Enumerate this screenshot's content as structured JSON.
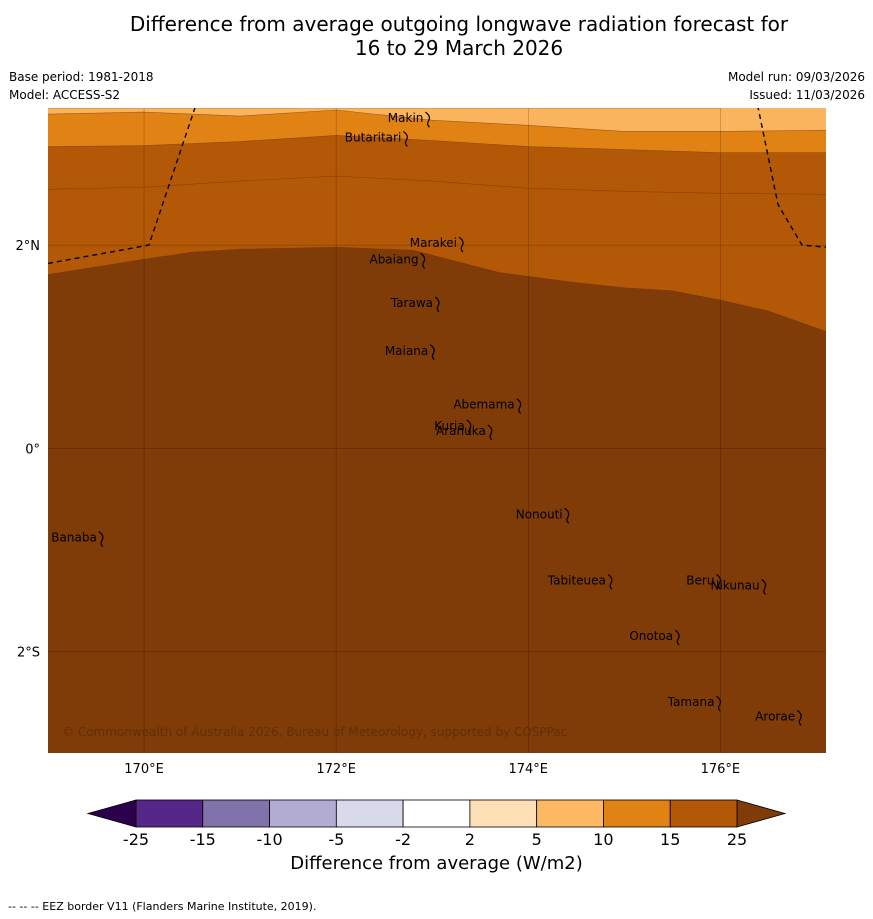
{
  "title": {
    "line1": "Difference from average outgoing longwave radiation forecast for",
    "line2": "16 to 29 March 2026"
  },
  "meta": {
    "base_period": "Base period: 1981-2018",
    "model": "Model: ACCESS-S2",
    "model_run": "Model run: 09/03/2026",
    "issued": "Issued: 11/03/2026"
  },
  "map": {
    "lon_range": [
      169.0,
      177.1
    ],
    "lat_range": [
      -3.0,
      3.35
    ],
    "longitude_ticks": [
      {
        "value": 170,
        "label": "170°E"
      },
      {
        "value": 172,
        "label": "172°E"
      },
      {
        "value": 174,
        "label": "174°E"
      },
      {
        "value": 176,
        "label": "176°E"
      }
    ],
    "latitude_ticks": [
      {
        "value": 2,
        "label": "2°N"
      },
      {
        "value": 0,
        "label": "0°"
      },
      {
        "value": -2,
        "label": "2°S"
      }
    ],
    "contour_colors": {
      "2_5": "#fde0b5",
      "5_10": "#f9b45d",
      "10_15": "#e08214",
      "15_25": "#b35806",
      "gt_25": "#7f3b08"
    },
    "boundaries": {
      "b2_5": {
        "lon": [
          169.0,
          170.0,
          172.0,
          174.0,
          175.5,
          176.0,
          177.1
        ],
        "lat": [
          3.35,
          3.35,
          3.35,
          3.35,
          3.35,
          3.35,
          3.55
        ]
      },
      "b5_10": {
        "lon": [
          169.0,
          170.0,
          171.0,
          172.0,
          173.0,
          174.0,
          175.0,
          176.0,
          177.1
        ],
        "lat": [
          3.29,
          3.31,
          3.27,
          3.33,
          3.23,
          3.18,
          3.12,
          3.12,
          3.13
        ]
      },
      "b10_15": {
        "lon": [
          169.0,
          170.0,
          171.0,
          172.0,
          173.0,
          174.0,
          175.0,
          176.0,
          177.1
        ],
        "lat": [
          2.97,
          2.98,
          3.02,
          3.08,
          3.03,
          2.97,
          2.94,
          2.91,
          2.91
        ]
      },
      "b15_25": {
        "lon": [
          169.0,
          170.0,
          171.0,
          172.0,
          173.0,
          174.0,
          175.0,
          176.0,
          177.1
        ],
        "lat": [
          2.55,
          2.57,
          2.63,
          2.68,
          2.63,
          2.56,
          2.53,
          2.51,
          2.5
        ]
      },
      "b25": {
        "lon": [
          169.0,
          170.0,
          170.5,
          171.0,
          172.0,
          172.8,
          173.7,
          174.5,
          175.0,
          175.5,
          176.0,
          176.5,
          177.1
        ],
        "lat": [
          1.71,
          1.86,
          1.93,
          1.96,
          1.98,
          1.95,
          1.73,
          1.63,
          1.58,
          1.55,
          1.46,
          1.35,
          1.15
        ]
      }
    },
    "eez": [
      {
        "lon": [
          169.0,
          170.05,
          170.6
        ],
        "lat": [
          1.82,
          2.0,
          3.55
        ]
      },
      {
        "lon": [
          176.35,
          176.6,
          176.85,
          177.1
        ],
        "lat": [
          3.55,
          2.4,
          2.0,
          1.98
        ]
      }
    ],
    "islands": [
      {
        "name": "Makin",
        "lon": 172.95,
        "lat": 3.25
      },
      {
        "name": "Butaritari",
        "lon": 172.72,
        "lat": 3.06
      },
      {
        "name": "Marakei",
        "lon": 173.3,
        "lat": 2.02
      },
      {
        "name": "Abaiang",
        "lon": 172.9,
        "lat": 1.86
      },
      {
        "name": "Tarawa",
        "lon": 173.05,
        "lat": 1.43
      },
      {
        "name": "Maiana",
        "lon": 173.0,
        "lat": 0.96
      },
      {
        "name": "Abemama",
        "lon": 173.9,
        "lat": 0.43
      },
      {
        "name": "Kuria",
        "lon": 173.38,
        "lat": 0.22
      },
      {
        "name": "Aranuka",
        "lon": 173.6,
        "lat": 0.17
      },
      {
        "name": "Nonouti",
        "lon": 174.4,
        "lat": -0.65
      },
      {
        "name": "Banaba",
        "lon": 169.55,
        "lat": -0.88
      },
      {
        "name": "Tabiteuea",
        "lon": 174.85,
        "lat": -1.3
      },
      {
        "name": "Beru",
        "lon": 175.98,
        "lat": -1.3
      },
      {
        "name": "Nikunau",
        "lon": 176.45,
        "lat": -1.35
      },
      {
        "name": "Onotoa",
        "lon": 175.55,
        "lat": -1.85
      },
      {
        "name": "Tamana",
        "lon": 175.98,
        "lat": -2.5
      },
      {
        "name": "Arorae",
        "lon": 176.82,
        "lat": -2.64
      }
    ],
    "credit": "© Commonwealth of Australia 2026, Bureau of Meteorology, supported by COSPPac"
  },
  "colorbar": {
    "title": "Difference from average (W/m2)",
    "ticks": [
      "-25",
      "-15",
      "-10",
      "-5",
      "-2",
      "2",
      "5",
      "10",
      "15",
      "25"
    ],
    "colors": [
      "#542788",
      "#8073ac",
      "#b2abd2",
      "#d8daeb",
      "#ffffff",
      "#fee0b6",
      "#fdb863",
      "#e08214",
      "#b35806"
    ],
    "under_color": "#2d004b",
    "over_color": "#7f3b08"
  },
  "footnote": "--  --  -- EEZ border V11 (Flanders Marine Institute, 2019)."
}
